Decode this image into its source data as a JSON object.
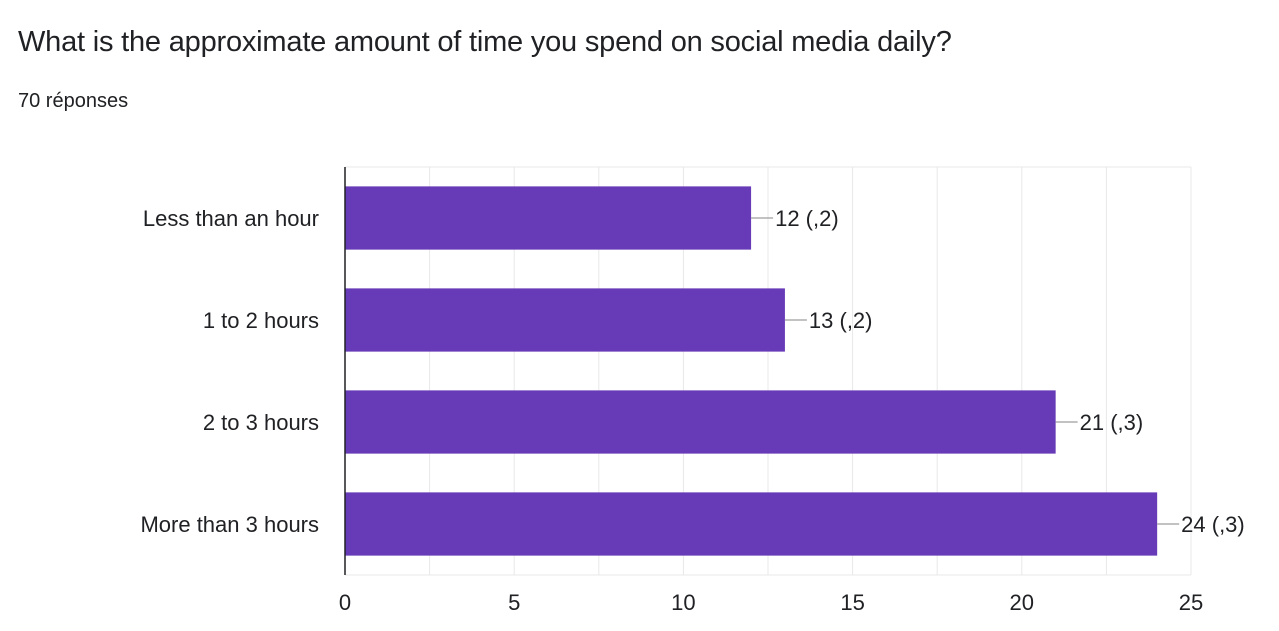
{
  "header": {
    "title": "What is the approximate amount of time you spend on social media daily?",
    "responses": "70 réponses"
  },
  "chart_data": {
    "type": "bar",
    "orientation": "horizontal",
    "categories": [
      "Less than an hour",
      "1 to 2 hours",
      "2 to 3 hours",
      "More than 3 hours"
    ],
    "values": [
      12,
      13,
      21,
      24
    ],
    "data_labels": [
      "12 (,2)",
      "13 (,2)",
      "21 (,3)",
      "24 (,3)"
    ],
    "xlim": [
      0,
      25
    ],
    "xticks": [
      0,
      5,
      10,
      15,
      20,
      25
    ],
    "title": "What is the approximate amount of time you spend on social media daily?",
    "xlabel": "",
    "ylabel": "",
    "grid": true,
    "bar_color": "#673ab7",
    "grid_color": "#e8e8e8",
    "axis_color": "#202124"
  }
}
